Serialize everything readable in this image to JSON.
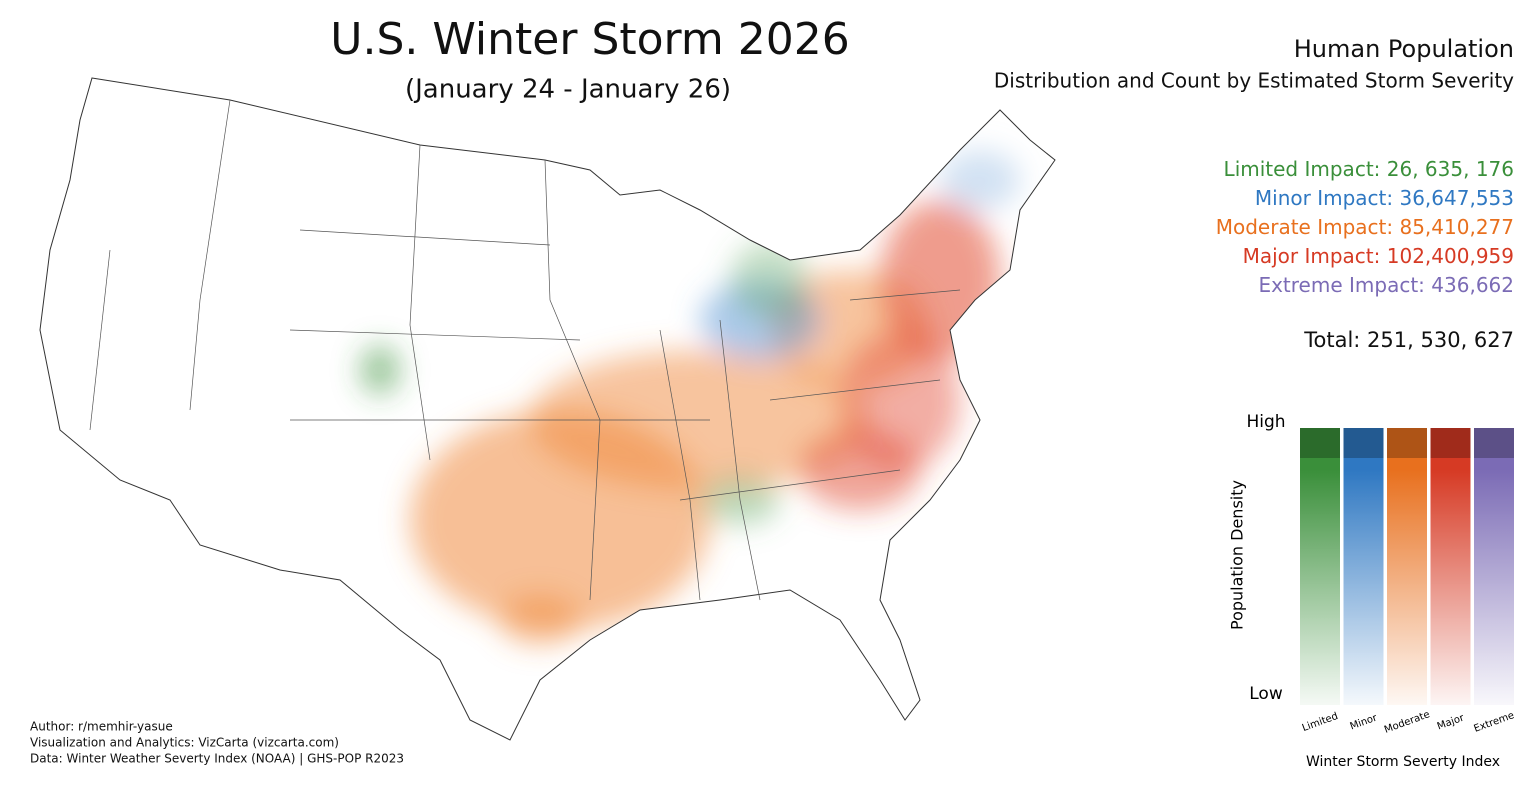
{
  "header": {
    "title": "U.S. Winter Storm 2026",
    "subtitle": "(January 24 - January 26)"
  },
  "panel": {
    "title": "Human Population",
    "subtitle": "Distribution and Count by Estimated Storm Severity"
  },
  "impacts": [
    {
      "label": "Limited Impact:",
      "count": "26, 635, 176",
      "color": "#3a8f3a"
    },
    {
      "label": "Minor Impact:",
      "count": "36,647,553",
      "color": "#2f78c2"
    },
    {
      "label": "Moderate Impact:",
      "count": "85,410,277",
      "color": "#e8701e"
    },
    {
      "label": "Major Impact:",
      "count": "102,400,959",
      "color": "#d63a24"
    },
    {
      "label": "Extreme Impact:",
      "count": "436,662",
      "color": "#7b6bb5"
    }
  ],
  "total": {
    "label": "Total:",
    "count": "251, 530, 627"
  },
  "legend": {
    "high": "High",
    "low": "Low",
    "y_label": "Population Density",
    "x_label": "Winter Storm Severty Index",
    "categories": [
      "Limited",
      "Minor",
      "Moderate",
      "Major",
      "Extreme"
    ]
  },
  "credits": [
    "Author: r/memhir-yasue",
    "Visualization and Analytics: VizCarta (vizcarta.com)",
    "Data: Winter Weather Severty Index (NOAA) | GHS-POP R2023"
  ]
}
